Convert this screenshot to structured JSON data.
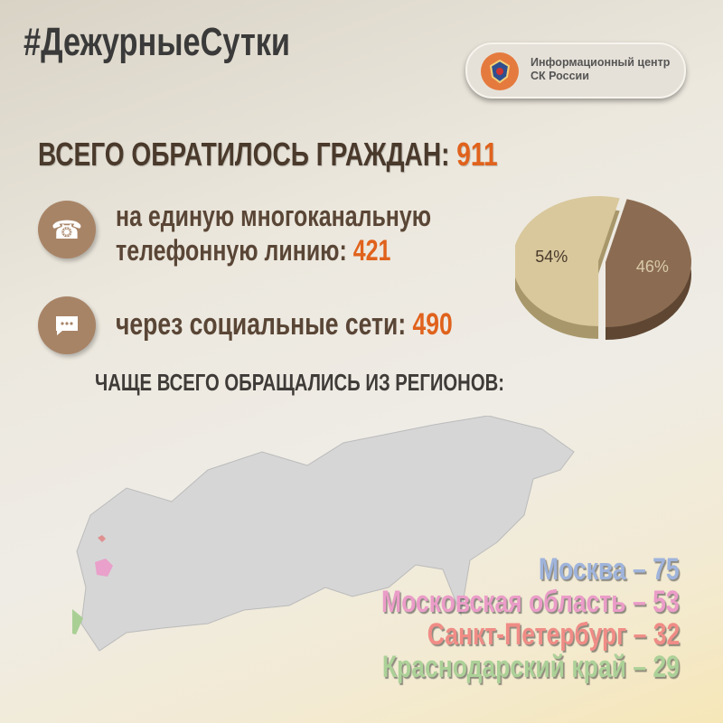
{
  "header": {
    "hashtag": "#ДежурныеСутки",
    "badge_line1": "Информационный центр",
    "badge_line2": "СК России",
    "badge_logo_icon": "sk-emblem-icon"
  },
  "total": {
    "label": "ВСЕГО ОБРАТИЛОСЬ ГРАЖДАН:",
    "value": "911"
  },
  "phone": {
    "icon": "phone-icon",
    "line1": "на единую многоканальную",
    "line2": "телефонную линию:",
    "value": "421"
  },
  "social": {
    "icon": "chat-bubble-icon",
    "label": "через социальные сети:",
    "value": "490"
  },
  "regions": {
    "title": "ЧАЩЕ ВСЕГО ОБРАЩАЛИСЬ ИЗ РЕГИОНОВ:",
    "items": [
      {
        "name": "Москва",
        "value": "75",
        "color": "#9fb4dc"
      },
      {
        "name": "Московская область",
        "value": "53",
        "color": "#eb9cc8"
      },
      {
        "name": "Санкт-Петербург",
        "value": "32",
        "color": "#f08c86"
      },
      {
        "name": "Краснодарский край",
        "value": "29",
        "color": "#acd198"
      }
    ]
  },
  "chart_data": {
    "type": "pie",
    "slices": [
      {
        "label": "46%",
        "value": 46,
        "color": "#8b6c52"
      },
      {
        "label": "54%",
        "value": 54,
        "color": "#d9c89c"
      }
    ]
  }
}
